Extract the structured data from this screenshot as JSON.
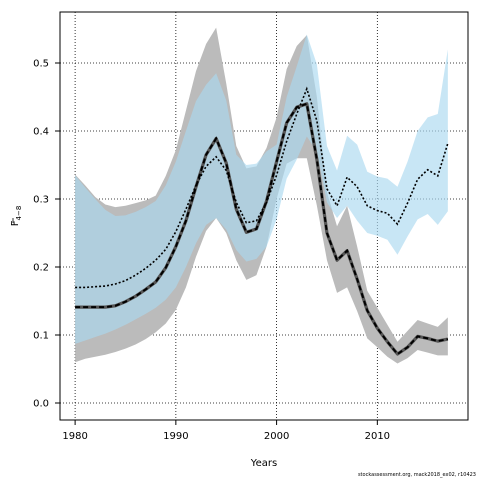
{
  "chart_data": {
    "type": "area",
    "title": "",
    "xlabel": "Years",
    "ylabel": {
      "main": "F",
      "sub": "4−8"
    },
    "xlim": [
      1978.5,
      2019
    ],
    "ylim": [
      -0.025,
      0.575
    ],
    "xticks": [
      1980,
      1990,
      2000,
      2010
    ],
    "yticks": [
      0.0,
      0.1,
      0.2,
      0.3,
      0.4,
      0.5
    ],
    "ytick_labels": [
      "0.0",
      "0.1",
      "0.2",
      "0.3",
      "0.4",
      "0.5"
    ],
    "grid": true,
    "x": [
      1980,
      1981,
      1982,
      1983,
      1984,
      1985,
      1986,
      1987,
      1988,
      1989,
      1990,
      1991,
      1992,
      1993,
      1994,
      1995,
      1996,
      1997,
      1998,
      1999,
      2000,
      2001,
      2002,
      2003,
      2004,
      2005,
      2006,
      2007,
      2008,
      2009,
      2010,
      2011,
      2012,
      2013,
      2014,
      2015,
      2016,
      2017
    ],
    "series": [
      {
        "color": "#000000",
        "band_color": "#bbbbbb",
        "line_style": "dashed",
        "values": [
          0.141,
          0.141,
          0.141,
          0.141,
          0.143,
          0.149,
          0.157,
          0.167,
          0.178,
          0.199,
          0.23,
          0.268,
          0.318,
          0.365,
          0.389,
          0.353,
          0.285,
          0.251,
          0.256,
          0.297,
          0.355,
          0.412,
          0.435,
          0.44,
          0.358,
          0.25,
          0.21,
          0.224,
          0.182,
          0.136,
          0.11,
          0.09,
          0.072,
          0.082,
          0.098,
          0.095,
          0.091,
          0.094
        ],
        "lower": [
          0.06,
          0.065,
          0.068,
          0.071,
          0.075,
          0.08,
          0.086,
          0.094,
          0.104,
          0.117,
          0.137,
          0.17,
          0.215,
          0.253,
          0.272,
          0.25,
          0.21,
          0.181,
          0.188,
          0.23,
          0.3,
          0.352,
          0.36,
          0.36,
          0.29,
          0.21,
          0.162,
          0.17,
          0.135,
          0.095,
          0.082,
          0.068,
          0.058,
          0.066,
          0.078,
          0.074,
          0.07,
          0.07
        ],
        "upper": [
          0.336,
          0.32,
          0.303,
          0.292,
          0.288,
          0.29,
          0.294,
          0.298,
          0.305,
          0.334,
          0.372,
          0.43,
          0.488,
          0.528,
          0.552,
          0.47,
          0.378,
          0.345,
          0.348,
          0.375,
          0.42,
          0.491,
          0.525,
          0.541,
          0.45,
          0.31,
          0.26,
          0.29,
          0.23,
          0.165,
          0.14,
          0.115,
          0.09,
          0.106,
          0.122,
          0.117,
          0.112,
          0.126
        ]
      },
      {
        "color": "#000000",
        "band_color": "#aad8ef",
        "line_style": "dotted",
        "values": [
          0.17,
          0.17,
          0.171,
          0.172,
          0.175,
          0.18,
          0.188,
          0.198,
          0.21,
          0.226,
          0.252,
          0.285,
          0.32,
          0.348,
          0.362,
          0.342,
          0.295,
          0.265,
          0.268,
          0.295,
          0.335,
          0.385,
          0.425,
          0.462,
          0.415,
          0.315,
          0.29,
          0.332,
          0.318,
          0.29,
          0.283,
          0.279,
          0.263,
          0.294,
          0.329,
          0.343,
          0.334,
          0.382
        ],
        "lower": [
          0.087,
          0.092,
          0.097,
          0.102,
          0.108,
          0.115,
          0.123,
          0.131,
          0.14,
          0.152,
          0.17,
          0.2,
          0.235,
          0.262,
          0.272,
          0.255,
          0.225,
          0.208,
          0.212,
          0.23,
          0.27,
          0.33,
          0.358,
          0.392,
          0.37,
          0.295,
          0.272,
          0.29,
          0.268,
          0.25,
          0.246,
          0.24,
          0.218,
          0.245,
          0.27,
          0.278,
          0.262,
          0.282
        ],
        "upper": [
          0.335,
          0.317,
          0.3,
          0.284,
          0.275,
          0.276,
          0.281,
          0.288,
          0.297,
          0.32,
          0.355,
          0.4,
          0.444,
          0.468,
          0.485,
          0.445,
          0.365,
          0.35,
          0.352,
          0.37,
          0.38,
          0.45,
          0.495,
          0.542,
          0.498,
          0.378,
          0.342,
          0.393,
          0.38,
          0.34,
          0.333,
          0.33,
          0.318,
          0.355,
          0.4,
          0.42,
          0.425,
          0.52
        ]
      }
    ],
    "footer": "stockassessment.org, mack2018_ex02, r10423"
  }
}
